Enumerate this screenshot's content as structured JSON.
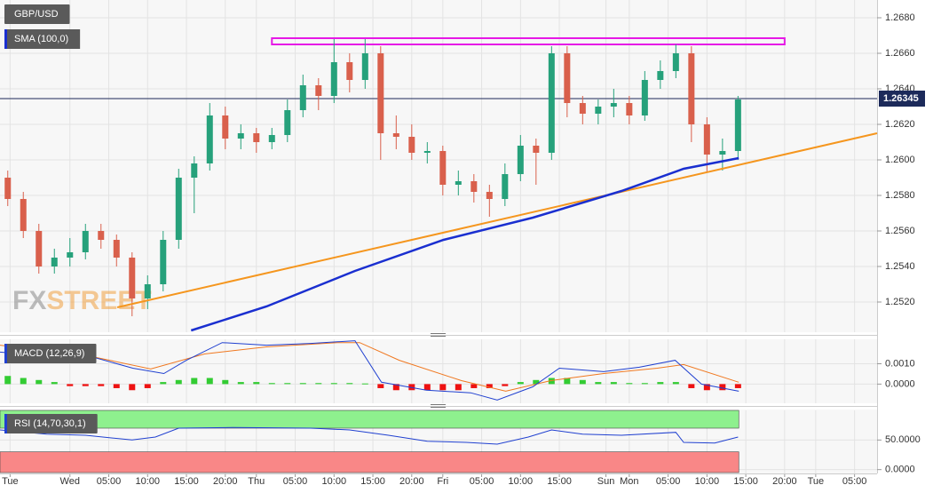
{
  "chart_data": [
    {
      "type": "candlestick",
      "title": "GBP/USD",
      "x": [
        1,
        3,
        5,
        7,
        9,
        11,
        13,
        15,
        17,
        19,
        21,
        23,
        25,
        27,
        29,
        31,
        33,
        35,
        37,
        39,
        41,
        43,
        45,
        47,
        49,
        51,
        53,
        55,
        57,
        59,
        61,
        63,
        65,
        67,
        69,
        71,
        73,
        75,
        77,
        79,
        81,
        83,
        85,
        87,
        89,
        91,
        93,
        95
      ],
      "ohlc": [
        [
          1.259,
          1.2594,
          1.2574,
          1.2578
        ],
        [
          1.2578,
          1.2582,
          1.2556,
          1.256
        ],
        [
          1.256,
          1.2564,
          1.2536,
          1.254
        ],
        [
          1.254,
          1.255,
          1.2536,
          1.2545
        ],
        [
          1.2545,
          1.2556,
          1.254,
          1.2548
        ],
        [
          1.2548,
          1.2564,
          1.2544,
          1.256
        ],
        [
          1.256,
          1.2564,
          1.255,
          1.2555
        ],
        [
          1.2555,
          1.2558,
          1.254,
          1.2545
        ],
        [
          1.2545,
          1.2548,
          1.2512,
          1.2522
        ],
        [
          1.2522,
          1.2535,
          1.2516,
          1.253
        ],
        [
          1.253,
          1.256,
          1.2526,
          1.2555
        ],
        [
          1.2555,
          1.2595,
          1.255,
          1.259
        ],
        [
          1.259,
          1.2602,
          1.257,
          1.2598
        ],
        [
          1.2598,
          1.2632,
          1.2594,
          1.2625
        ],
        [
          1.2625,
          1.263,
          1.2606,
          1.2612
        ],
        [
          1.2612,
          1.262,
          1.2606,
          1.2615
        ],
        [
          1.2615,
          1.2618,
          1.2604,
          1.261
        ],
        [
          1.261,
          1.2618,
          1.2606,
          1.2614
        ],
        [
          1.2614,
          1.2634,
          1.261,
          1.2628
        ],
        [
          1.2628,
          1.2648,
          1.2624,
          1.2642
        ],
        [
          1.2642,
          1.2646,
          1.2628,
          1.2636
        ],
        [
          1.2636,
          1.2668,
          1.2632,
          1.2655
        ],
        [
          1.2655,
          1.266,
          1.2638,
          1.2645
        ],
        [
          1.2645,
          1.2668,
          1.264,
          1.266
        ],
        [
          1.266,
          1.2664,
          1.26,
          1.2615
        ],
        [
          1.2615,
          1.2625,
          1.2606,
          1.2613
        ],
        [
          1.2613,
          1.262,
          1.26,
          1.2604
        ],
        [
          1.2604,
          1.261,
          1.2598,
          1.2605
        ],
        [
          1.2605,
          1.2608,
          1.258,
          1.2586
        ],
        [
          1.2586,
          1.2594,
          1.258,
          1.2588
        ],
        [
          1.2588,
          1.2592,
          1.2576,
          1.2582
        ],
        [
          1.2582,
          1.2586,
          1.2568,
          1.2578
        ],
        [
          1.2578,
          1.2598,
          1.2574,
          1.2592
        ],
        [
          1.2592,
          1.2614,
          1.2588,
          1.2608
        ],
        [
          1.2608,
          1.2612,
          1.2586,
          1.2604
        ],
        [
          1.2604,
          1.2664,
          1.26,
          1.266
        ],
        [
          1.266,
          1.2664,
          1.2624,
          1.2632
        ],
        [
          1.2632,
          1.2636,
          1.262,
          1.2626
        ],
        [
          1.2626,
          1.2634,
          1.262,
          1.263
        ],
        [
          1.263,
          1.264,
          1.2624,
          1.2632
        ],
        [
          1.2632,
          1.2636,
          1.262,
          1.2625
        ],
        [
          1.2625,
          1.265,
          1.2622,
          1.2645
        ],
        [
          1.2645,
          1.2656,
          1.264,
          1.265
        ],
        [
          1.265,
          1.2665,
          1.2646,
          1.266
        ],
        [
          1.266,
          1.2664,
          1.261,
          1.262
        ],
        [
          1.262,
          1.2624,
          1.2593,
          1.2603
        ],
        [
          1.2603,
          1.2612,
          1.2594,
          1.2605
        ],
        [
          1.2605,
          1.2636,
          1.26,
          1.2634
        ]
      ],
      "up_color": "#26a17b",
      "down_color": "#d9604c",
      "xlim": [
        0,
        112.9
      ],
      "xticks": [
        {
          "value": 1.3,
          "label": "Tue"
        },
        {
          "value": 9,
          "label": "Wed"
        },
        {
          "value": 14,
          "label": "05:00"
        },
        {
          "value": 19,
          "label": "10:00"
        },
        {
          "value": 24,
          "label": "15:00"
        },
        {
          "value": 29,
          "label": "20:00"
        },
        {
          "value": 33,
          "label": "Thu"
        },
        {
          "value": 38,
          "label": "05:00"
        },
        {
          "value": 43,
          "label": "10:00"
        },
        {
          "value": 48,
          "label": "15:00"
        },
        {
          "value": 53,
          "label": "20:00"
        },
        {
          "value": 57,
          "label": "Fri"
        },
        {
          "value": 62,
          "label": "05:00"
        },
        {
          "value": 67,
          "label": "10:00"
        },
        {
          "value": 72,
          "label": "15:00"
        },
        {
          "value": 78,
          "label": "Sun"
        },
        {
          "value": 81,
          "label": "Mon"
        },
        {
          "value": 86,
          "label": "05:00"
        },
        {
          "value": 91,
          "label": "10:00"
        },
        {
          "value": 96,
          "label": "15:00"
        },
        {
          "value": 101,
          "label": "20:00"
        },
        {
          "value": 105,
          "label": "Tue"
        },
        {
          "value": 110,
          "label": "05:00"
        }
      ],
      "ylim": [
        1.2504,
        1.269
      ],
      "yticks": [
        {
          "value": 1.252,
          "label": "1.2520"
        },
        {
          "value": 1.254,
          "label": "1.2540"
        },
        {
          "value": 1.256,
          "label": "1.2560"
        },
        {
          "value": 1.258,
          "label": "1.2580"
        },
        {
          "value": 1.26,
          "label": "1.2600"
        },
        {
          "value": 1.262,
          "label": "1.2620"
        },
        {
          "value": 1.264,
          "label": "1.2640"
        },
        {
          "value": 1.266,
          "label": "1.2660"
        },
        {
          "value": 1.268,
          "label": "1.2680"
        }
      ],
      "grid": true,
      "overlays": [
        {
          "name": "SMA (100,0)",
          "color": "#1a2fd0",
          "x": [
            24.6,
            34.3,
            45.7,
            57.1,
            68.6,
            80,
            88,
            95.1
          ],
          "values": [
            1.2504,
            1.25175,
            1.25375,
            1.2555,
            1.25675,
            1.25825,
            1.2595,
            1.2601
          ]
        }
      ],
      "trendline": {
        "color": "#f5961e",
        "x": [
          15.1,
          112.9
        ],
        "values": [
          1.2517,
          1.2615
        ]
      },
      "zone": {
        "color": "#e619e6",
        "x": [
          35,
          101
        ],
        "values": [
          1.2665,
          1.26685
        ]
      },
      "last_price": {
        "value": 1.26345,
        "label": "1.26345",
        "color": "#1c2a5a"
      },
      "watermark": [
        "FX",
        "STREET"
      ]
    },
    {
      "type": "macd",
      "title": "MACD (12,26,9)",
      "ylim": [
        -0.0009,
        0.0022
      ],
      "yticks": [
        {
          "value": 0.001,
          "label": "0.0010"
        },
        {
          "value": 0,
          "label": "0.0000"
        }
      ],
      "histogram": {
        "up_color": "#33cc33",
        "down_color": "#ee1111",
        "x": [
          1,
          3,
          5,
          7,
          9,
          11,
          13,
          15,
          17,
          19,
          21,
          23,
          25,
          27,
          29,
          31,
          33,
          35,
          37,
          39,
          41,
          43,
          45,
          47,
          49,
          51,
          53,
          55,
          57,
          59,
          61,
          63,
          65,
          67,
          69,
          71,
          73,
          75,
          77,
          79,
          81,
          83,
          85,
          87,
          89,
          91,
          93,
          95
        ],
        "values": [
          0.0004,
          0.0003,
          0.0002,
          0.0001,
          -0.0001,
          -0.0001,
          -0.0001,
          -0.0002,
          -0.0003,
          -0.0002,
          0.0001,
          0.0002,
          0.0003,
          0.0003,
          0.0002,
          0.0001,
          0.0001,
          5e-05,
          5e-05,
          5e-05,
          5e-05,
          5e-05,
          5e-05,
          3e-05,
          -0.0002,
          -0.0003,
          -0.0003,
          -0.0003,
          -0.0003,
          -0.0003,
          -0.0002,
          -0.0002,
          -0.0001,
          0.0001,
          0.0002,
          0.0003,
          0.0003,
          0.0002,
          0.0001,
          0.0001,
          5e-05,
          5e-05,
          0.0001,
          0.0001,
          -0.0002,
          -0.0003,
          -0.0003,
          -0.0002
        ]
      },
      "macd": {
        "color": "#2040d0",
        "x": [
          0,
          5.7,
          11.4,
          17.1,
          21.1,
          24,
          28.6,
          34.3,
          40,
          45.7,
          49.1,
          54.9,
          60.6,
          64,
          68.6,
          72,
          77.7,
          82.3,
          86.9,
          90.3,
          95.1
        ],
        "values": [
          0.00157,
          0.00139,
          0.00139,
          0.00078,
          0.00052,
          0.00117,
          0.00204,
          0.00191,
          0.002,
          0.00213,
          9e-05,
          -0.0003,
          -0.00043,
          -0.00078,
          -0.00013,
          0.00078,
          0.00061,
          0.00083,
          0.00117,
          0,
          -0.00035
        ]
      },
      "signal": {
        "color": "#f07820",
        "x": [
          0,
          11.4,
          19.4,
          26.3,
          34.3,
          43.4,
          46.3,
          51.4,
          59.4,
          65.1,
          70.9,
          77.7,
          84.6,
          88,
          95.1
        ],
        "values": [
          0.00191,
          0.00139,
          0.00074,
          0.00148,
          0.00183,
          0.00204,
          0.00204,
          0.00117,
          0.00017,
          -0.00035,
          0.00017,
          0.00052,
          0.00078,
          0.00096,
          9e-05
        ]
      }
    },
    {
      "type": "rsi",
      "title": "RSI (14,70,30,1)",
      "ylim": [
        -5,
        100
      ],
      "yticks": [
        {
          "value": 50,
          "label": "50.0000"
        },
        {
          "value": 0,
          "label": "0.0000"
        }
      ],
      "overbought": 70,
      "oversold": 30,
      "band_end": 95.1,
      "overbought_color": "#8ef08e",
      "oversold_color": "#f98787",
      "line": {
        "color": "#2040d0",
        "x": [
          0,
          6,
          11,
          17,
          20,
          23,
          30,
          40,
          45,
          50,
          55,
          60,
          64,
          68,
          71,
          75,
          80,
          87,
          88,
          92,
          95
        ],
        "values": [
          67,
          60,
          58,
          50,
          55,
          70,
          71,
          70,
          67,
          58,
          48,
          46,
          43,
          55,
          67,
          60,
          58,
          63,
          46,
          45,
          55
        ]
      }
    }
  ]
}
